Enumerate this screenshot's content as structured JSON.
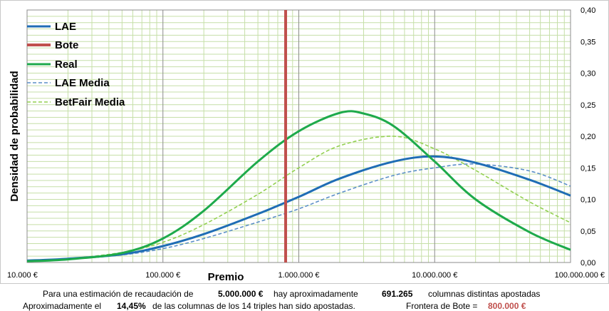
{
  "chart_data": {
    "type": "line",
    "xlabel": "Premio",
    "ylabel": "Densidad de probabilidad",
    "x_scale": "log",
    "xlim": [
      10000,
      100000000
    ],
    "ylim": [
      0,
      0.4
    ],
    "x_ticks": [
      10000,
      100000,
      1000000,
      10000000,
      100000000
    ],
    "x_tick_labels": [
      "10.000 €",
      "100.000 €",
      "1.000.000 €",
      "10.000.000 €",
      "100.000.000 €"
    ],
    "y_ticks": [
      0,
      0.05,
      0.1,
      0.15,
      0.2,
      0.25,
      0.3,
      0.35,
      0.4
    ],
    "y_tick_labels": [
      "0,00",
      "0,05",
      "0,10",
      "0,15",
      "0,20",
      "0,25",
      "0,30",
      "0,35",
      "0,40"
    ],
    "y_axis_position": "right",
    "grid": true,
    "legend_position": "top-left",
    "series": [
      {
        "name": "LAE",
        "color": "#1f6db5",
        "style": "solid",
        "points": [
          [
            10000,
            0.003
          ],
          [
            20000,
            0.006
          ],
          [
            50000,
            0.013
          ],
          [
            100000,
            0.026
          ],
          [
            200000,
            0.045
          ],
          [
            500000,
            0.077
          ],
          [
            1000000,
            0.104
          ],
          [
            2000000,
            0.133
          ],
          [
            5000000,
            0.16
          ],
          [
            10000000,
            0.168
          ],
          [
            20000000,
            0.158
          ],
          [
            50000000,
            0.131
          ],
          [
            100000000,
            0.106
          ]
        ]
      },
      {
        "name": "Bote",
        "color": "#c0504d",
        "style": "vertical",
        "x": 800000
      },
      {
        "name": "Real",
        "color": "#1eaa4b",
        "style": "solid",
        "points": [
          [
            10000,
            0.002
          ],
          [
            20000,
            0.005
          ],
          [
            50000,
            0.015
          ],
          [
            100000,
            0.038
          ],
          [
            200000,
            0.082
          ],
          [
            500000,
            0.16
          ],
          [
            1000000,
            0.208
          ],
          [
            2000000,
            0.237
          ],
          [
            3000000,
            0.236
          ],
          [
            5000000,
            0.216
          ],
          [
            10000000,
            0.16
          ],
          [
            20000000,
            0.1
          ],
          [
            50000000,
            0.048
          ],
          [
            100000000,
            0.02
          ]
        ]
      },
      {
        "name": "LAE Media",
        "color": "#5b8fc7",
        "style": "dashed",
        "points": [
          [
            10000,
            0.002
          ],
          [
            20000,
            0.005
          ],
          [
            50000,
            0.012
          ],
          [
            100000,
            0.022
          ],
          [
            200000,
            0.038
          ],
          [
            500000,
            0.064
          ],
          [
            1000000,
            0.085
          ],
          [
            2000000,
            0.11
          ],
          [
            5000000,
            0.138
          ],
          [
            10000000,
            0.15
          ],
          [
            20000000,
            0.156
          ],
          [
            50000000,
            0.145
          ],
          [
            100000000,
            0.121
          ]
        ]
      },
      {
        "name": "BetFair Media",
        "color": "#92d050",
        "style": "dashed",
        "points": [
          [
            10000,
            0.002
          ],
          [
            20000,
            0.006
          ],
          [
            50000,
            0.016
          ],
          [
            100000,
            0.032
          ],
          [
            200000,
            0.06
          ],
          [
            500000,
            0.108
          ],
          [
            1000000,
            0.15
          ],
          [
            2000000,
            0.185
          ],
          [
            5000000,
            0.2
          ],
          [
            10000000,
            0.18
          ],
          [
            20000000,
            0.146
          ],
          [
            50000000,
            0.096
          ],
          [
            100000000,
            0.063
          ]
        ]
      }
    ]
  },
  "summary": {
    "line1": {
      "a": "Para  una estimación de recaudación de",
      "b": "5.000.000 €",
      "c": "hay aproximadamente",
      "d": "691.265",
      "e": "columnas distintas apostadas"
    },
    "line2": {
      "a": "Aproximadamente el",
      "b": "14,45%",
      "c": "de las columnas de los 14 triples han sido apostadas.",
      "d": "Frontera de Bote =",
      "e": "800.000 €"
    }
  }
}
